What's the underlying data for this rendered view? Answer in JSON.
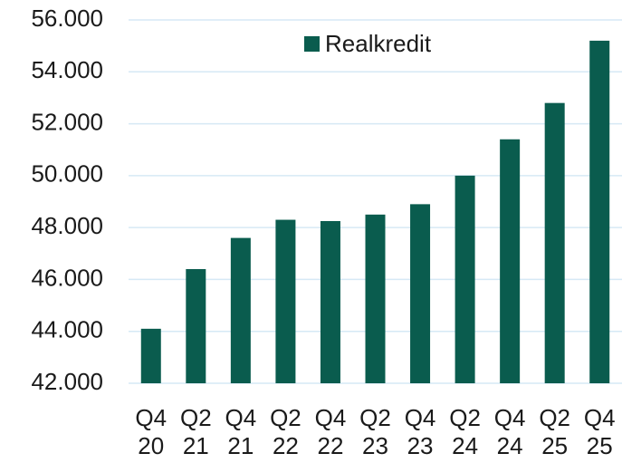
{
  "chart_data": {
    "type": "bar",
    "categories": [
      "Q4 20",
      "Q2 21",
      "Q4 21",
      "Q2 22",
      "Q4 22",
      "Q2 23",
      "Q4 23",
      "Q2 24",
      "Q4 24",
      "Q2 25",
      "Q4 25"
    ],
    "series": [
      {
        "name": "Realkredit",
        "color": "#0a5c4e",
        "values": [
          44100,
          46400,
          47600,
          48300,
          48250,
          48500,
          48900,
          50000,
          51400,
          52800,
          55200
        ]
      }
    ],
    "ylim": [
      42000,
      56000
    ],
    "yticks": [
      {
        "value": 42000,
        "label": "42.000"
      },
      {
        "value": 44000,
        "label": "44.000"
      },
      {
        "value": 46000,
        "label": "46.000"
      },
      {
        "value": 48000,
        "label": "48.000"
      },
      {
        "value": 50000,
        "label": "50.000"
      },
      {
        "value": 52000,
        "label": "52.000"
      },
      {
        "value": 54000,
        "label": "54.000"
      },
      {
        "value": 56000,
        "label": "56.000"
      }
    ],
    "grid": true,
    "legend": "top"
  }
}
